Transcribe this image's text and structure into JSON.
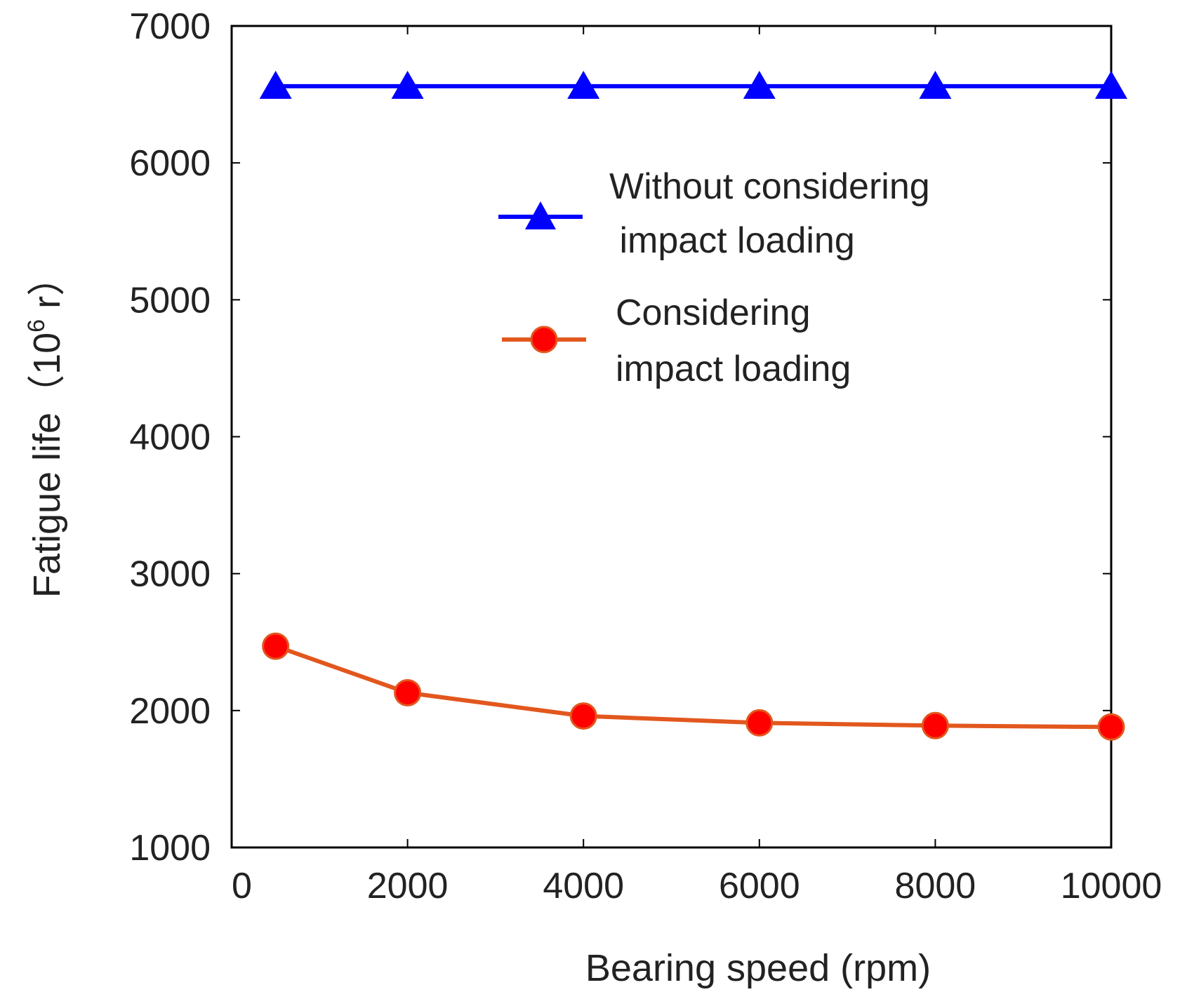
{
  "chart_data": {
    "type": "line",
    "title": "",
    "xlabel": "Bearing speed (rpm)",
    "ylabel": {
      "prefix": "Fatigue life（",
      "base": "10",
      "exponent": "6",
      "unit": " r",
      "suffix": "）"
    },
    "xlim": [
      0,
      10000
    ],
    "ylim": [
      1000,
      7000
    ],
    "xticks": [
      0,
      2000,
      4000,
      6000,
      8000,
      10000
    ],
    "xtick_labels": [
      "0",
      "2000",
      "4000",
      "6000",
      "8000",
      "10000"
    ],
    "yticks": [
      1000,
      2000,
      3000,
      4000,
      5000,
      6000,
      7000
    ],
    "ytick_labels": [
      "1000",
      "2000",
      "3000",
      "4000",
      "5000",
      "6000",
      "7000"
    ],
    "grid": false,
    "legend_position": "upper-right",
    "series": [
      {
        "name": "Without considering impact loading",
        "legend_lines": [
          "Without considering",
          " impact loading"
        ],
        "color": "#0000ff",
        "marker": "triangle",
        "x": [
          500,
          2000,
          4000,
          6000,
          8000,
          10000
        ],
        "y": [
          6560,
          6560,
          6560,
          6560,
          6560,
          6560
        ]
      },
      {
        "name": "Considering impact loading",
        "legend_lines": [
          "Considering",
          "impact loading"
        ],
        "color": "#e2571e",
        "marker_color": "#ff0000",
        "marker": "circle",
        "x": [
          500,
          2000,
          4000,
          6000,
          8000,
          10000
        ],
        "y": [
          2470,
          2130,
          1960,
          1910,
          1890,
          1880
        ]
      }
    ]
  }
}
